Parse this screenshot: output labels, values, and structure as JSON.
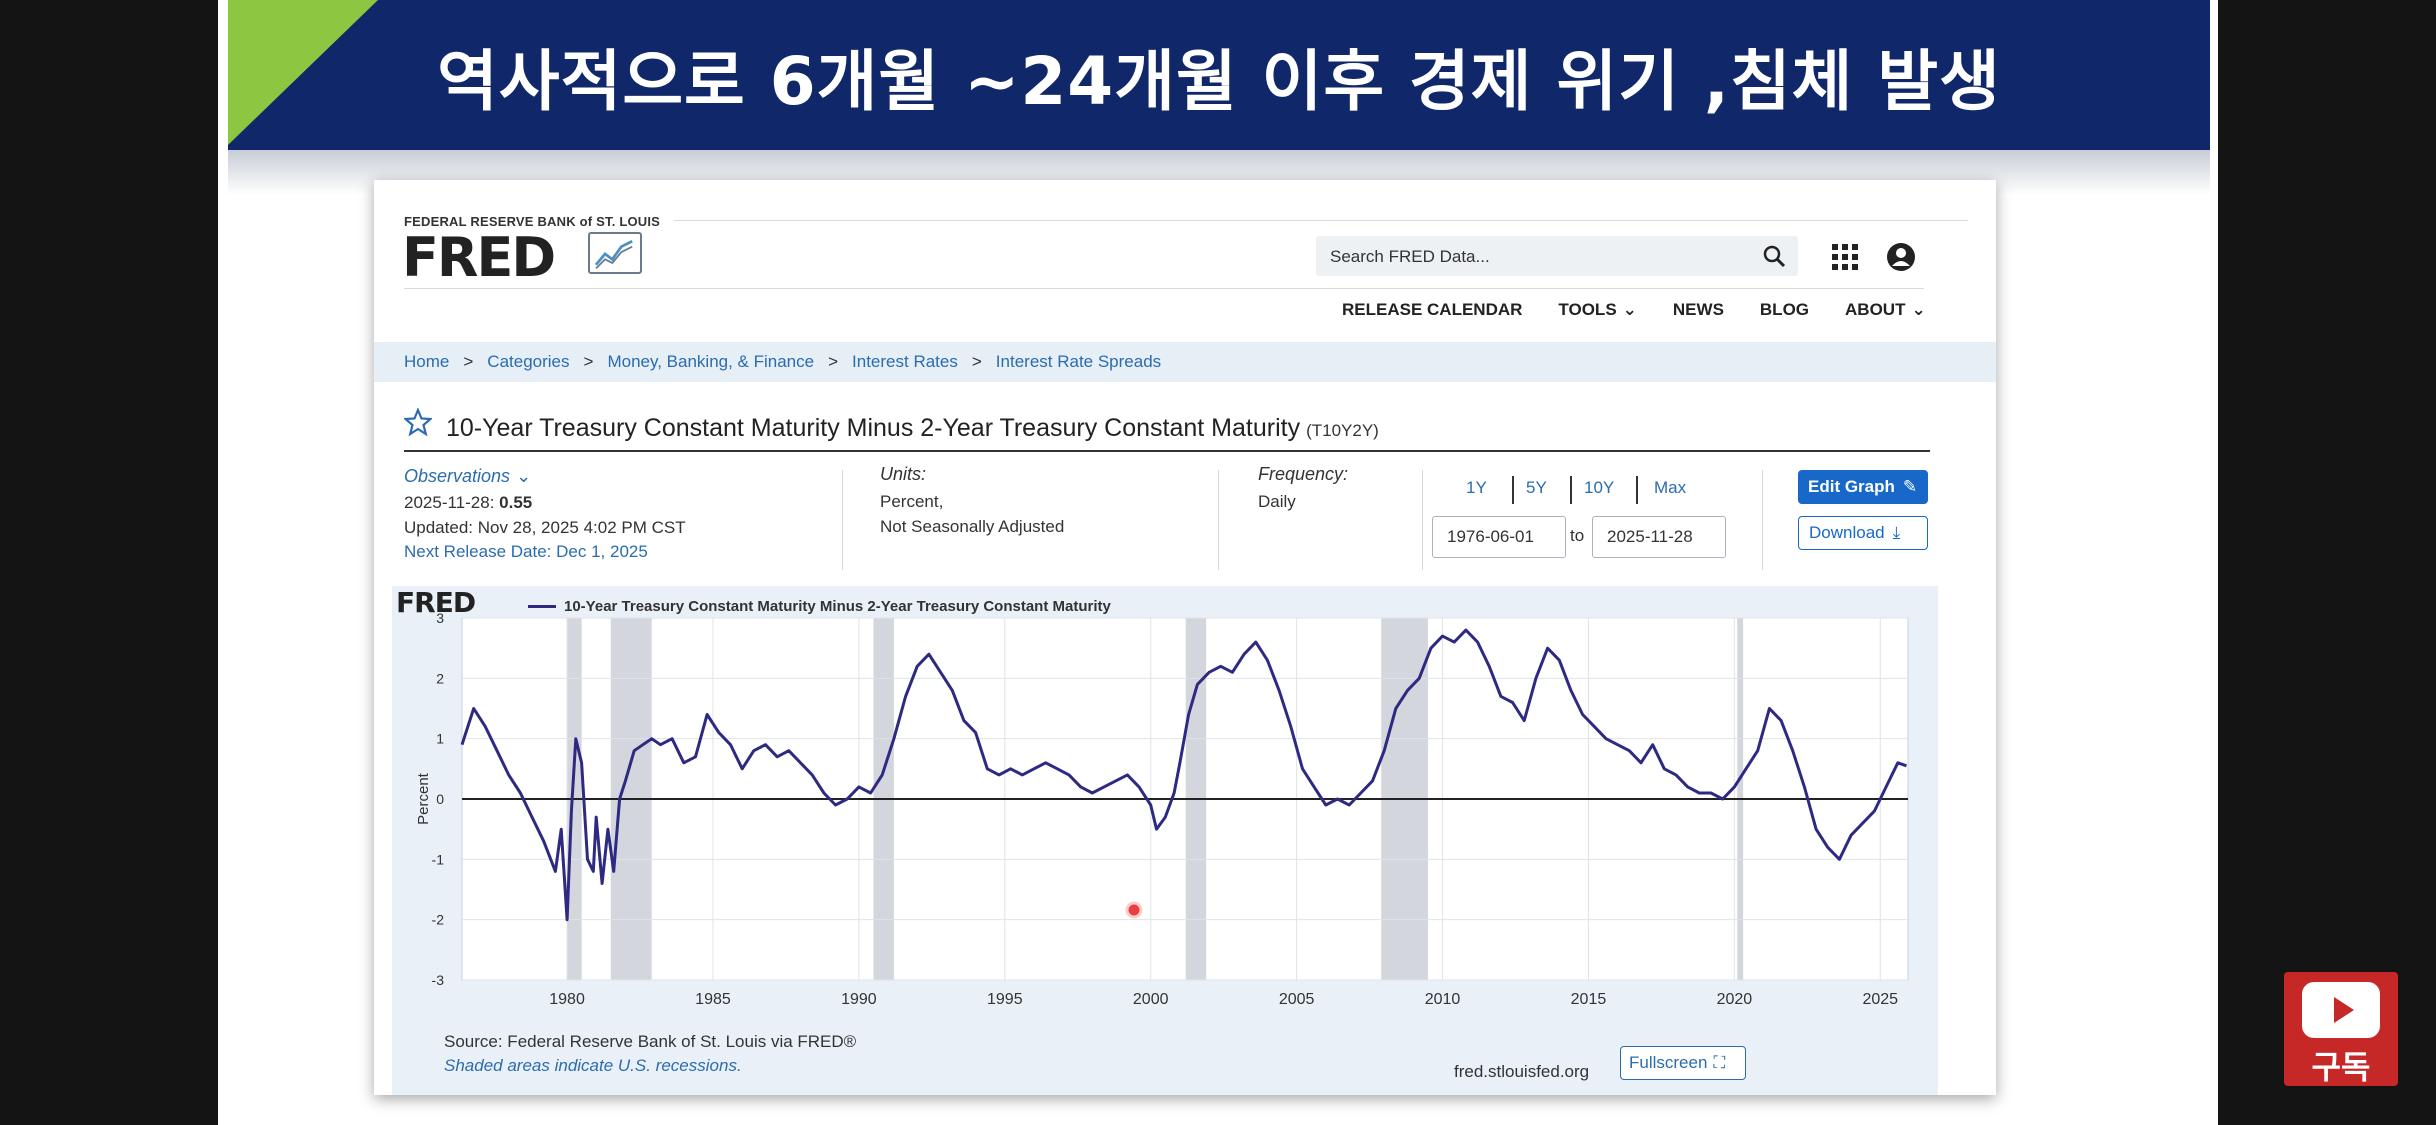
{
  "slide": {
    "title": "역사적으로 6개월 ~24개월 이후 경제 위기 ,침체 발생"
  },
  "header": {
    "org": "FEDERAL RESERVE BANK of ST. LOUIS",
    "logo": "FRED",
    "search_placeholder": "Search FRED Data...",
    "nav": [
      {
        "label": "RELEASE CALENDAR",
        "dropdown": false
      },
      {
        "label": "TOOLS",
        "dropdown": true
      },
      {
        "label": "NEWS",
        "dropdown": false
      },
      {
        "label": "BLOG",
        "dropdown": false
      },
      {
        "label": "ABOUT",
        "dropdown": true
      }
    ]
  },
  "breadcrumb": {
    "items": [
      "Home",
      "Categories",
      "Money, Banking, & Finance",
      "Interest Rates",
      "Interest Rate Spreads"
    ],
    "sep": ">"
  },
  "series": {
    "title": "10-Year Treasury Constant Maturity Minus 2-Year Treasury Constant Maturity",
    "id": "(T10Y2Y)"
  },
  "meta": {
    "observations_label": "Observations",
    "obs_date": "2025-11-28:",
    "obs_value": "0.55",
    "updated": "Updated: Nov 28, 2025 4:02 PM CST",
    "next_release": "Next Release Date: Dec 1, 2025",
    "units_label": "Units:",
    "units_1": "Percent,",
    "units_2": "Not Seasonally Adjusted",
    "frequency_label": "Frequency:",
    "frequency": "Daily"
  },
  "controls": {
    "ranges": [
      "1Y",
      "5Y",
      "10Y",
      "Max"
    ],
    "start_date": "1976-06-01",
    "to": "to",
    "end_date": "2025-11-28",
    "edit_graph": "Edit Graph",
    "download": "Download",
    "fullscreen": "Fullscreen"
  },
  "chart_footer": {
    "logo": "FRED",
    "source": "Source: Federal Reserve Bank of St. Louis via FRED®",
    "shaded": "Shaded areas indicate U.S. recessions.",
    "site": "fred.stlouisfed.org"
  },
  "subscribe": {
    "label": "구독"
  },
  "colors": {
    "banner": "#10276a",
    "accent_green": "#8dc641",
    "link": "#2b6cb0",
    "line": "#2e2a82",
    "recession": "#d3d6dc",
    "subscribe": "#c62828"
  },
  "chart_data": {
    "type": "line",
    "title": "10-Year Treasury Constant Maturity Minus 2-Year Treasury Constant Maturity",
    "ylabel": "Percent",
    "xlabel": "",
    "xlim": [
      1976.4,
      2025.95
    ],
    "ylim": [
      -3,
      3
    ],
    "y_ticks": [
      -3,
      -2,
      -1,
      0,
      1,
      2,
      3
    ],
    "x_ticks": [
      1980,
      1985,
      1990,
      1995,
      2000,
      2005,
      2010,
      2015,
      2020,
      2025
    ],
    "recessions": [
      [
        1980.0,
        1980.5
      ],
      [
        1981.5,
        1982.9
      ],
      [
        1990.5,
        1991.2
      ],
      [
        2001.2,
        2001.9
      ],
      [
        2007.9,
        2009.5
      ],
      [
        2020.1,
        2020.3
      ]
    ],
    "series": [
      {
        "name": "10-Year Treasury Constant Maturity Minus 2-Year Treasury Constant Maturity",
        "x": [
          1976.4,
          1976.8,
          1977.2,
          1977.6,
          1978.0,
          1978.4,
          1978.8,
          1979.2,
          1979.6,
          1979.8,
          1980.0,
          1980.15,
          1980.3,
          1980.5,
          1980.7,
          1980.9,
          1981.0,
          1981.2,
          1981.4,
          1981.6,
          1981.8,
          1982.0,
          1982.3,
          1982.6,
          1982.9,
          1983.2,
          1983.6,
          1984.0,
          1984.4,
          1984.8,
          1985.2,
          1985.6,
          1986.0,
          1986.4,
          1986.8,
          1987.2,
          1987.6,
          1988.0,
          1988.4,
          1988.8,
          1989.2,
          1989.6,
          1990.0,
          1990.4,
          1990.8,
          1991.2,
          1991.6,
          1992.0,
          1992.4,
          1992.8,
          1993.2,
          1993.6,
          1994.0,
          1994.4,
          1994.8,
          1995.2,
          1995.6,
          1996.0,
          1996.4,
          1996.8,
          1997.2,
          1997.6,
          1998.0,
          1998.4,
          1998.8,
          1999.2,
          1999.6,
          2000.0,
          2000.2,
          2000.5,
          2000.8,
          2001.0,
          2001.3,
          2001.6,
          2002.0,
          2002.4,
          2002.8,
          2003.2,
          2003.6,
          2004.0,
          2004.4,
          2004.8,
          2005.2,
          2005.6,
          2006.0,
          2006.4,
          2006.8,
          2007.2,
          2007.6,
          2008.0,
          2008.4,
          2008.8,
          2009.2,
          2009.6,
          2010.0,
          2010.4,
          2010.8,
          2011.2,
          2011.6,
          2012.0,
          2012.4,
          2012.8,
          2013.2,
          2013.6,
          2014.0,
          2014.4,
          2014.8,
          2015.2,
          2015.6,
          2016.0,
          2016.4,
          2016.8,
          2017.2,
          2017.6,
          2018.0,
          2018.4,
          2018.8,
          2019.2,
          2019.6,
          2020.0,
          2020.4,
          2020.8,
          2021.2,
          2021.6,
          2022.0,
          2022.4,
          2022.8,
          2023.2,
          2023.6,
          2024.0,
          2024.4,
          2024.8,
          2025.2,
          2025.6,
          2025.9
        ],
        "values": [
          0.9,
          1.5,
          1.2,
          0.8,
          0.4,
          0.1,
          -0.3,
          -0.7,
          -1.2,
          -0.5,
          -2.0,
          -0.2,
          1.0,
          0.6,
          -1.0,
          -1.2,
          -0.3,
          -1.4,
          -0.5,
          -1.2,
          0.0,
          0.3,
          0.8,
          0.9,
          1.0,
          0.9,
          1.0,
          0.6,
          0.7,
          1.4,
          1.1,
          0.9,
          0.5,
          0.8,
          0.9,
          0.7,
          0.8,
          0.6,
          0.4,
          0.1,
          -0.1,
          0.0,
          0.2,
          0.1,
          0.4,
          1.0,
          1.7,
          2.2,
          2.4,
          2.1,
          1.8,
          1.3,
          1.1,
          0.5,
          0.4,
          0.5,
          0.4,
          0.5,
          0.6,
          0.5,
          0.4,
          0.2,
          0.1,
          0.2,
          0.3,
          0.4,
          0.2,
          -0.1,
          -0.5,
          -0.3,
          0.1,
          0.6,
          1.4,
          1.9,
          2.1,
          2.2,
          2.1,
          2.4,
          2.6,
          2.3,
          1.8,
          1.2,
          0.5,
          0.2,
          -0.1,
          0.0,
          -0.1,
          0.1,
          0.3,
          0.8,
          1.5,
          1.8,
          2.0,
          2.5,
          2.7,
          2.6,
          2.8,
          2.6,
          2.2,
          1.7,
          1.6,
          1.3,
          2.0,
          2.5,
          2.3,
          1.8,
          1.4,
          1.2,
          1.0,
          0.9,
          0.8,
          0.6,
          0.9,
          0.5,
          0.4,
          0.2,
          0.1,
          0.1,
          0.0,
          0.2,
          0.5,
          0.8,
          1.5,
          1.3,
          0.8,
          0.2,
          -0.5,
          -0.8,
          -1.0,
          -0.6,
          -0.4,
          -0.2,
          0.2,
          0.6,
          0.55
        ]
      }
    ]
  }
}
